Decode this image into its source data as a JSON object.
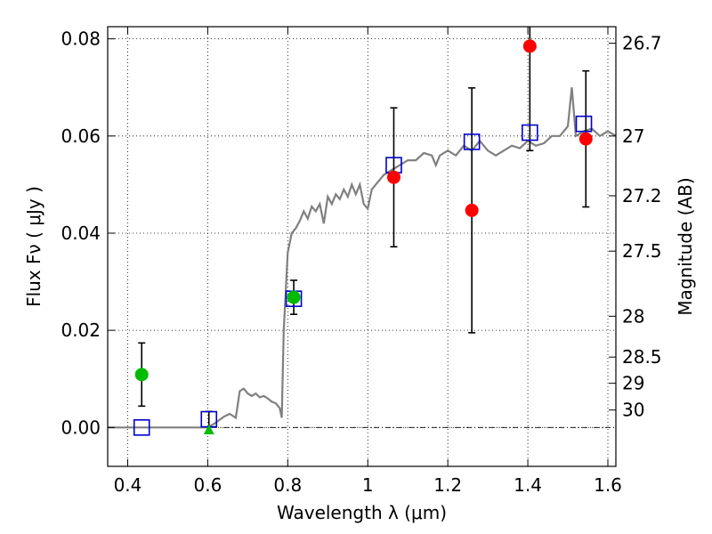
{
  "chart_data": {
    "type": "scatter",
    "xlabel": "Wavelength  λ (μm)",
    "ylabel_left": "Flux  Fν  ( μJy )",
    "ylabel_right": "Magnitude (AB)",
    "xlim": [
      0.35,
      1.62
    ],
    "ylim": [
      -0.008,
      0.0825
    ],
    "x_ticks": [
      0.4,
      0.6,
      0.8,
      1.0,
      1.2,
      1.4,
      1.6
    ],
    "x_tick_labels": [
      "0.4",
      "0.6",
      "0.8",
      "1",
      "1.2",
      "1.4",
      "1.6"
    ],
    "y_ticks": [
      0.0,
      0.02,
      0.04,
      0.06,
      0.08
    ],
    "y_tick_labels": [
      "0.00",
      "0.02",
      "0.04",
      "0.06",
      "0.08"
    ],
    "right_ticks": [
      {
        "flux": 0.0791,
        "label": "26.7"
      },
      {
        "flux": 0.06,
        "label": "27"
      },
      {
        "flux": 0.0477,
        "label": "27.2"
      },
      {
        "flux": 0.0363,
        "label": "27.5"
      },
      {
        "flux": 0.0229,
        "label": "28"
      },
      {
        "flux": 0.0145,
        "label": "28.5"
      },
      {
        "flux": 0.0091,
        "label": "29"
      },
      {
        "flux": 0.0036,
        "label": "30"
      }
    ],
    "grid": true,
    "colors": {
      "model": "#808080",
      "synthetic": "#0000cc",
      "observed_red": "#ff0000",
      "observed_green": "#00bb00",
      "errorbar": "#000000"
    },
    "series": [
      {
        "marker": "line",
        "points": [
          [
            0.35,
            0.0
          ],
          [
            0.6,
            0.0
          ],
          [
            0.62,
            0.001
          ],
          [
            0.64,
            0.0022
          ],
          [
            0.655,
            0.0028
          ],
          [
            0.67,
            0.002
          ],
          [
            0.68,
            0.0075
          ],
          [
            0.69,
            0.008
          ],
          [
            0.7,
            0.007
          ],
          [
            0.71,
            0.0065
          ],
          [
            0.72,
            0.007
          ],
          [
            0.73,
            0.0062
          ],
          [
            0.74,
            0.0065
          ],
          [
            0.75,
            0.006
          ],
          [
            0.76,
            0.0053
          ],
          [
            0.77,
            0.005
          ],
          [
            0.78,
            0.004
          ],
          [
            0.785,
            0.002
          ],
          [
            0.79,
            0.02
          ],
          [
            0.8,
            0.036
          ],
          [
            0.81,
            0.04
          ],
          [
            0.82,
            0.041
          ],
          [
            0.83,
            0.0425
          ],
          [
            0.84,
            0.0445
          ],
          [
            0.85,
            0.043
          ],
          [
            0.86,
            0.0455
          ],
          [
            0.87,
            0.0445
          ],
          [
            0.88,
            0.046
          ],
          [
            0.89,
            0.042
          ],
          [
            0.9,
            0.0475
          ],
          [
            0.91,
            0.046
          ],
          [
            0.92,
            0.048
          ],
          [
            0.93,
            0.047
          ],
          [
            0.94,
            0.049
          ],
          [
            0.95,
            0.0475
          ],
          [
            0.96,
            0.05
          ],
          [
            0.97,
            0.048
          ],
          [
            0.98,
            0.05
          ],
          [
            0.99,
            0.046
          ],
          [
            1.0,
            0.045
          ],
          [
            1.01,
            0.049
          ],
          [
            1.02,
            0.05
          ],
          [
            1.03,
            0.051
          ],
          [
            1.04,
            0.052
          ],
          [
            1.06,
            0.053
          ],
          [
            1.08,
            0.054
          ],
          [
            1.1,
            0.055
          ],
          [
            1.12,
            0.055
          ],
          [
            1.14,
            0.0565
          ],
          [
            1.16,
            0.056
          ],
          [
            1.17,
            0.054
          ],
          [
            1.18,
            0.056
          ],
          [
            1.2,
            0.057
          ],
          [
            1.22,
            0.056
          ],
          [
            1.24,
            0.058
          ],
          [
            1.26,
            0.057
          ],
          [
            1.28,
            0.059
          ],
          [
            1.3,
            0.057
          ],
          [
            1.32,
            0.056
          ],
          [
            1.34,
            0.057
          ],
          [
            1.36,
            0.058
          ],
          [
            1.38,
            0.0575
          ],
          [
            1.4,
            0.059
          ],
          [
            1.42,
            0.058
          ],
          [
            1.44,
            0.0585
          ],
          [
            1.46,
            0.06
          ],
          [
            1.48,
            0.06
          ],
          [
            1.5,
            0.062
          ],
          [
            1.51,
            0.07
          ],
          [
            1.52,
            0.06
          ],
          [
            1.54,
            0.061
          ],
          [
            1.56,
            0.0615
          ],
          [
            1.58,
            0.06
          ],
          [
            1.6,
            0.061
          ],
          [
            1.62,
            0.06
          ]
        ]
      },
      {
        "marker": "open-square",
        "points": [
          {
            "x": 0.435,
            "y": 0.0
          },
          {
            "x": 0.603,
            "y": 0.0017
          },
          {
            "x": 0.815,
            "y": 0.0265
          },
          {
            "x": 1.065,
            "y": 0.054
          },
          {
            "x": 1.26,
            "y": 0.0588
          },
          {
            "x": 1.405,
            "y": 0.0607
          },
          {
            "x": 1.54,
            "y": 0.0625
          }
        ]
      },
      {
        "marker": "filled-circle",
        "points": [
          {
            "x": 1.065,
            "y": 0.0515,
            "err": 0.0143
          },
          {
            "x": 1.26,
            "y": 0.0447,
            "err": 0.0252
          },
          {
            "x": 1.405,
            "y": 0.0785,
            "err": 0.0215
          },
          {
            "x": 1.545,
            "y": 0.0594,
            "err": 0.014
          }
        ]
      },
      {
        "marker": "filled-circle",
        "points": [
          {
            "x": 0.435,
            "y": 0.0109,
            "err": 0.0065
          },
          {
            "x": 0.815,
            "y": 0.0268,
            "err": 0.0035
          }
        ]
      },
      {
        "marker": "triangle",
        "points": [
          {
            "x": 0.603,
            "y": -0.0005,
            "err_top": 0.0038
          }
        ]
      }
    ]
  }
}
